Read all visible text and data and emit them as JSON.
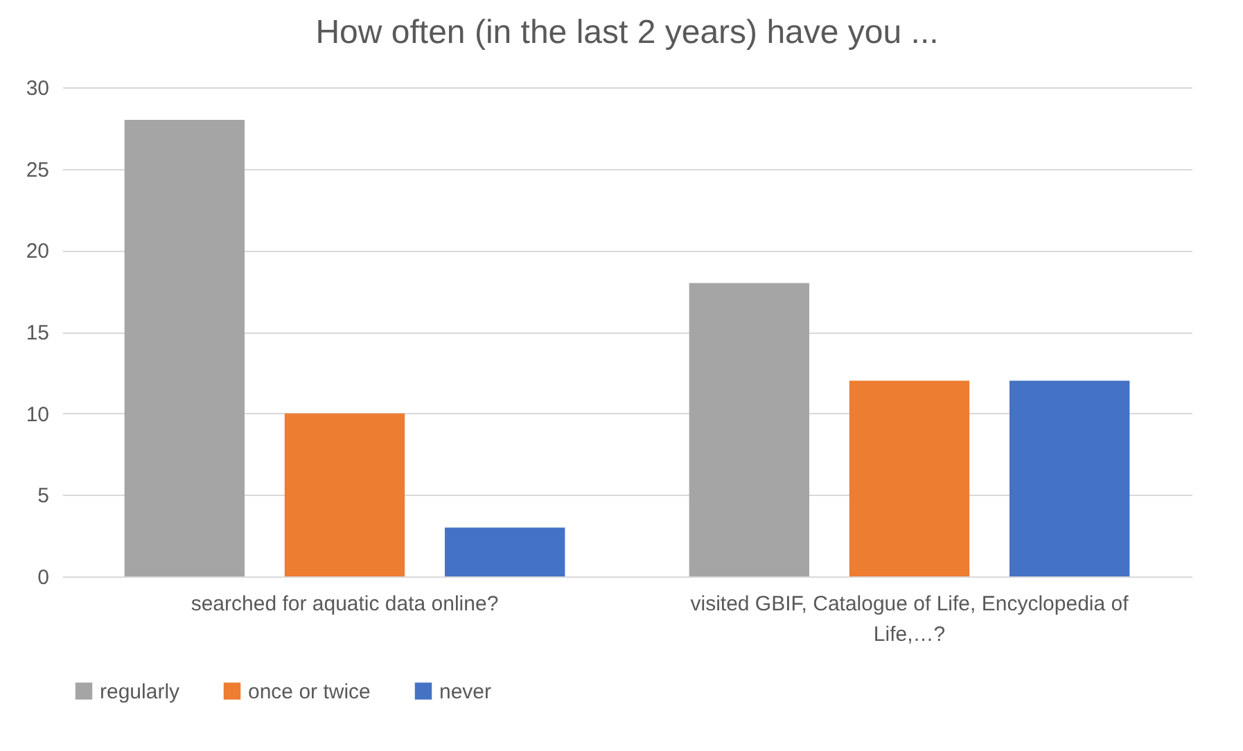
{
  "chart_data": {
    "type": "bar",
    "title": "How often (in the last 2 years) have you ...",
    "categories": [
      "searched for aquatic data online?",
      "visited GBIF, Catalogue of Life, Encyclopedia of Life,…?"
    ],
    "series": [
      {
        "name": "regularly",
        "color": "#a5a5a5",
        "values": [
          28,
          18
        ]
      },
      {
        "name": "once or twice",
        "color": "#ed7d31",
        "values": [
          10,
          12
        ]
      },
      {
        "name": "never",
        "color": "#4472c4",
        "values": [
          3,
          12
        ]
      }
    ],
    "ylim": [
      0,
      30
    ],
    "yticks": [
      0,
      5,
      10,
      15,
      20,
      25,
      30
    ],
    "grid": "y",
    "legend": "bottom"
  }
}
